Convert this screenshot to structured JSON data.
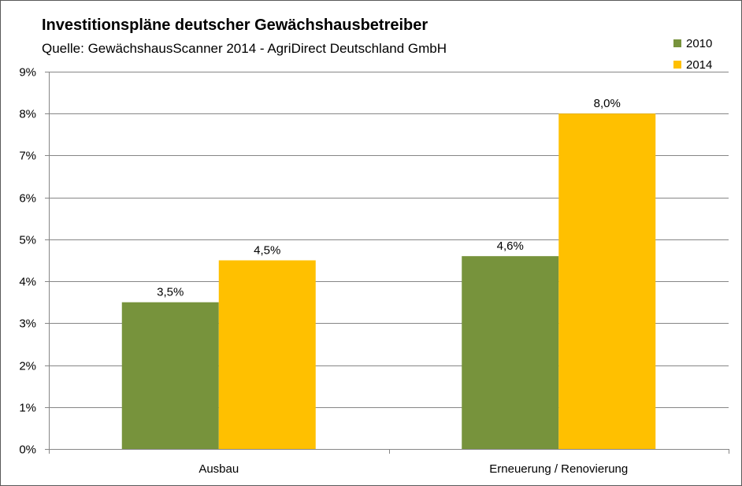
{
  "chart_data": {
    "type": "bar",
    "title": "Investitionspläne deutscher Gewächshausbetreiber",
    "subtitle": "Quelle: GewächshausScanner 2014 - AgriDirect Deutschland GmbH",
    "categories": [
      "Ausbau",
      "Erneuerung / Renovierung"
    ],
    "series": [
      {
        "name": "2010",
        "values": [
          3.5,
          4.6
        ],
        "labels": [
          "3,5%",
          "4,6%"
        ],
        "color": "#77933C"
      },
      {
        "name": "2014",
        "values": [
          4.5,
          8.0
        ],
        "labels": [
          "4,5%",
          "8,0%"
        ],
        "color": "#FFC000"
      }
    ],
    "y_ticks": [
      "0%",
      "1%",
      "2%",
      "3%",
      "4%",
      "5%",
      "6%",
      "7%",
      "8%",
      "9%"
    ],
    "ylim": [
      0,
      9
    ],
    "grid": true,
    "legend_position": "top-right"
  }
}
